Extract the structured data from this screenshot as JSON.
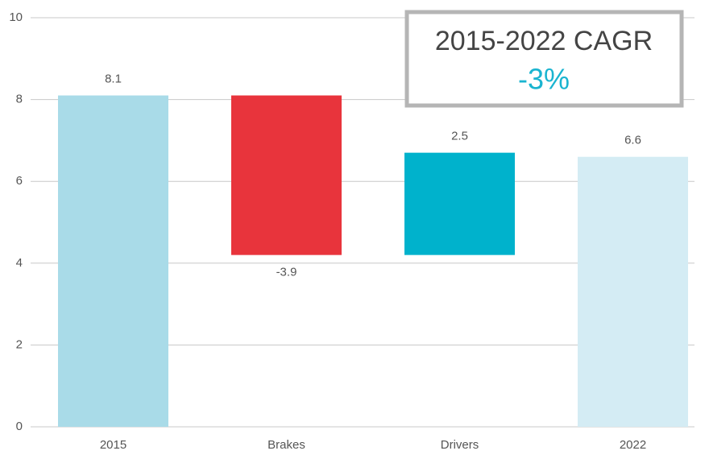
{
  "chart_data": {
    "type": "waterfall",
    "categories": [
      "2015",
      "Brakes",
      "Drivers",
      "2022"
    ],
    "values": [
      8.1,
      -3.9,
      2.5,
      6.6
    ],
    "colors": [
      "#a9dbe8",
      "#e8343c",
      "#00b2cc",
      "#d4ecf4"
    ],
    "ylim": [
      0,
      10
    ],
    "yticks": [
      0,
      2,
      4,
      6,
      8,
      10
    ],
    "grid": true,
    "annotation": {
      "title": "2015-2022 CAGR",
      "value": "-3%",
      "value_color": "#1ab4d0"
    }
  }
}
